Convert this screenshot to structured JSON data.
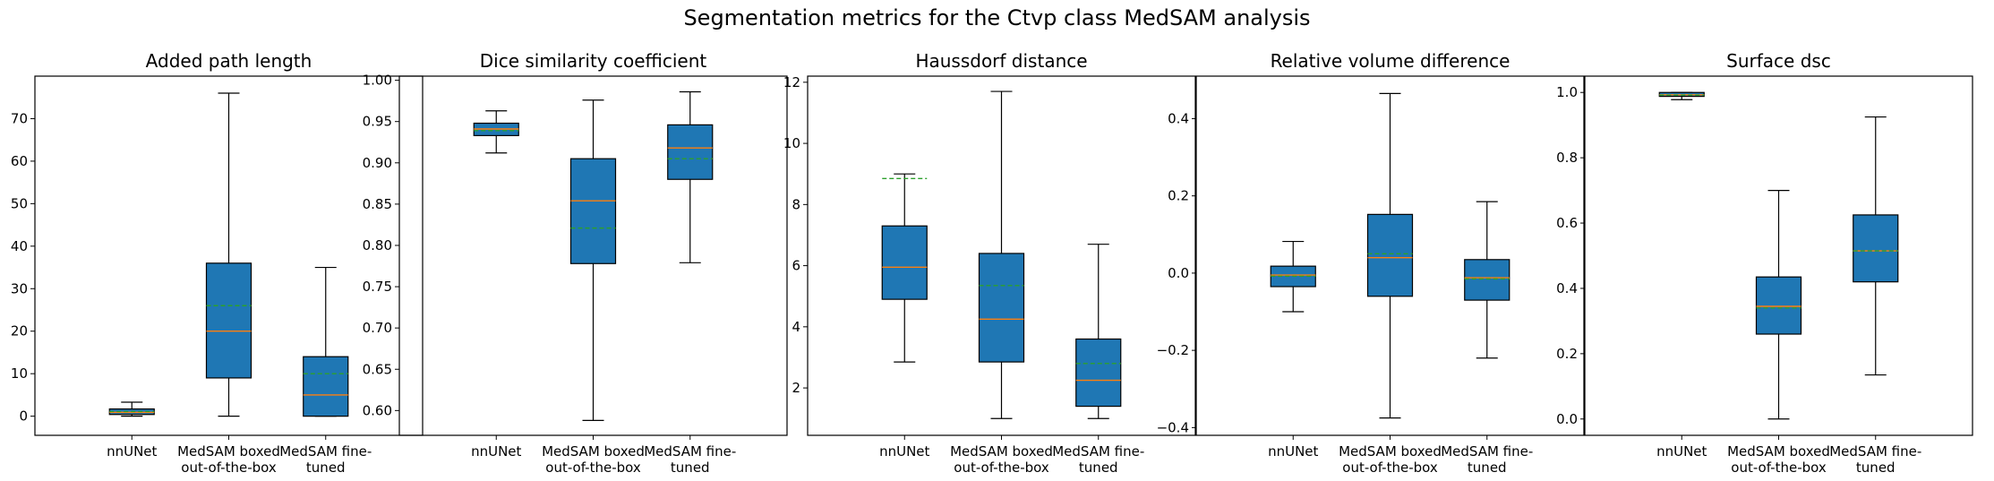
{
  "figure": {
    "title": "Segmentation metrics for the Ctvp class MedSAM analysis"
  },
  "colors": {
    "box_fill": "#1f77b4",
    "median_line": "#ff7f0e",
    "mean_line": "#2ca02c",
    "frame": "#000000"
  },
  "chart_data": [
    {
      "type": "box",
      "title": "Added path length",
      "categories": [
        "nnUNet",
        "MedSAM boxed\nout-of-the-box",
        "MedSAM fine-\ntuned"
      ],
      "ylim": [
        -4.5,
        80
      ],
      "yticks": [
        0,
        10,
        20,
        30,
        40,
        50,
        60,
        70
      ],
      "ytick_labels": [
        "0",
        "10",
        "20",
        "30",
        "40",
        "50",
        "60",
        "70"
      ],
      "boxes": [
        {
          "whislo": 0,
          "q1": 0.4,
          "med": 0.9,
          "mean": 1.1,
          "q3": 1.7,
          "whishi": 3.3
        },
        {
          "whislo": 0,
          "q1": 9,
          "med": 20,
          "mean": 26,
          "q3": 36,
          "whishi": 76
        },
        {
          "whislo": 0,
          "q1": 0,
          "med": 5,
          "mean": 10,
          "q3": 14,
          "whishi": 35
        }
      ]
    },
    {
      "type": "box",
      "title": "Dice similarity coefficient",
      "categories": [
        "nnUNet",
        "MedSAM boxed\nout-of-the-box",
        "MedSAM fine-\ntuned"
      ],
      "ylim": [
        0.57,
        1.005
      ],
      "yticks": [
        0.6,
        0.65,
        0.7,
        0.75,
        0.8,
        0.85,
        0.9,
        0.95,
        1.0
      ],
      "ytick_labels": [
        "0.60",
        "0.65",
        "0.70",
        "0.75",
        "0.80",
        "0.85",
        "0.90",
        "0.95",
        "1.00"
      ],
      "boxes": [
        {
          "whislo": 0.912,
          "q1": 0.933,
          "med": 0.941,
          "mean": 0.939,
          "q3": 0.948,
          "whishi": 0.963
        },
        {
          "whislo": 0.588,
          "q1": 0.778,
          "med": 0.854,
          "mean": 0.821,
          "q3": 0.905,
          "whishi": 0.976
        },
        {
          "whislo": 0.779,
          "q1": 0.88,
          "med": 0.918,
          "mean": 0.905,
          "q3": 0.946,
          "whishi": 0.986
        }
      ]
    },
    {
      "type": "box",
      "title": "Haussdorf distance",
      "categories": [
        "nnUNet",
        "MedSAM boxed\nout-of-the-box",
        "MedSAM fine-\ntuned"
      ],
      "ylim": [
        0.45,
        12.2
      ],
      "yticks": [
        2,
        4,
        6,
        8,
        10,
        12
      ],
      "ytick_labels": [
        "2",
        "4",
        "6",
        "8",
        "10",
        "12"
      ],
      "boxes": [
        {
          "whislo": 2.85,
          "q1": 4.9,
          "med": 5.95,
          "mean": 8.85,
          "q3": 7.3,
          "whishi": 9.0
        },
        {
          "whislo": 1.0,
          "q1": 2.85,
          "med": 4.25,
          "mean": 5.35,
          "q3": 6.4,
          "whishi": 11.7
        },
        {
          "whislo": 1.0,
          "q1": 1.4,
          "med": 2.25,
          "mean": 2.8,
          "q3": 3.6,
          "whishi": 6.7
        }
      ]
    },
    {
      "type": "box",
      "title": "Relative volume difference",
      "categories": [
        "nnUNet",
        "MedSAM boxed\nout-of-the-box",
        "MedSAM fine-\ntuned"
      ],
      "ylim": [
        -0.42,
        0.51
      ],
      "yticks": [
        -0.4,
        -0.2,
        0.0,
        0.2,
        0.4
      ],
      "ytick_labels": [
        "−0.4",
        "−0.2",
        "0.0",
        "0.2",
        "0.4"
      ],
      "boxes": [
        {
          "whislo": -0.1,
          "q1": -0.035,
          "med": -0.005,
          "mean": -0.008,
          "q3": 0.018,
          "whishi": 0.082
        },
        {
          "whislo": -0.375,
          "q1": -0.06,
          "med": 0.04,
          "mean": 0.05,
          "q3": 0.152,
          "whishi": 0.465
        },
        {
          "whislo": -0.22,
          "q1": -0.07,
          "med": -0.012,
          "mean": -0.015,
          "q3": 0.035,
          "whishi": 0.185
        }
      ]
    },
    {
      "type": "box",
      "title": "Surface dsc",
      "categories": [
        "nnUNet",
        "MedSAM boxed\nout-of-the-box",
        "MedSAM fine-\ntuned"
      ],
      "ylim": [
        -0.05,
        1.05
      ],
      "yticks": [
        0.0,
        0.2,
        0.4,
        0.6,
        0.8,
        1.0
      ],
      "ytick_labels": [
        "0.0",
        "0.2",
        "0.4",
        "0.6",
        "0.8",
        "1.0"
      ],
      "boxes": [
        {
          "whislo": 0.978,
          "q1": 0.988,
          "med": 0.993,
          "mean": 0.992,
          "q3": 1.0,
          "whishi": 1.0
        },
        {
          "whislo": 0.0,
          "q1": 0.26,
          "med": 0.345,
          "mean": 0.34,
          "q3": 0.435,
          "whishi": 0.7
        },
        {
          "whislo": 0.135,
          "q1": 0.42,
          "med": 0.515,
          "mean": 0.515,
          "q3": 0.625,
          "whishi": 0.925
        }
      ]
    }
  ]
}
